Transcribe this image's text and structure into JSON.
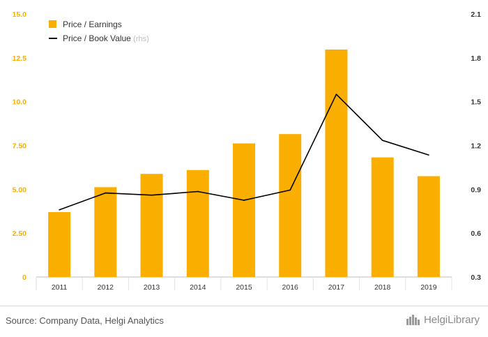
{
  "colors": {
    "bar": "#F9AE00",
    "line": "#000000",
    "axis_text": "#333333",
    "grid": "#e6e6e6",
    "legend_muted": "#bbbbbb",
    "footer_text": "#555555",
    "brand": "#8a8a8a"
  },
  "chart_data": {
    "type": "bar",
    "categories": [
      "2011",
      "2012",
      "2013",
      "2014",
      "2015",
      "2016",
      "2017",
      "2018",
      "2019"
    ],
    "series": [
      {
        "name": "Price / Earnings",
        "type": "bar",
        "axis": "left",
        "values": [
          3.7,
          5.12,
          5.88,
          6.1,
          7.62,
          8.15,
          12.97,
          6.82,
          5.75
        ]
      },
      {
        "name": "Price / Book Value",
        "type": "line",
        "axis": "right",
        "values": [
          0.76,
          0.875,
          0.86,
          0.885,
          0.825,
          0.895,
          1.55,
          1.235,
          1.135
        ]
      }
    ],
    "y_left": {
      "min": 0,
      "max": 15,
      "ticks": [
        "0",
        "2.50",
        "5.00",
        "7.50",
        "10.0",
        "12.5",
        "15.0"
      ]
    },
    "y_right": {
      "min": 0.3,
      "max": 2.1,
      "ticks": [
        "0.3",
        "0.6",
        "0.9",
        "1.2",
        "1.5",
        "1.8",
        "2.1"
      ]
    },
    "legend": {
      "position": "top-left",
      "items": [
        {
          "label": "Price / Earnings",
          "suffix": ""
        },
        {
          "label": "Price / Book Value",
          "suffix": "(rhs)"
        }
      ]
    },
    "grid": false,
    "title": "",
    "xlabel": "",
    "ylabel": ""
  },
  "footer": {
    "source": "Source: Company Data, Helgi Analytics",
    "brand": "HelgiLibrary",
    "brand_icon": "helgi-library-logo-icon"
  }
}
